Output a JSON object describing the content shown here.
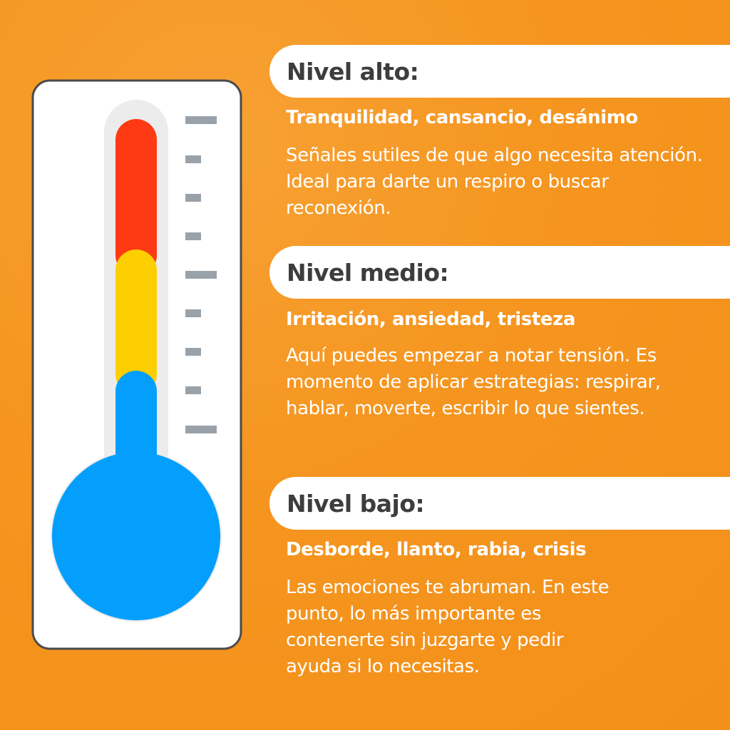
{
  "levels": [
    {
      "title": "Nivel alto:",
      "subtitle": "Tranquilidad, cansancio, desánimo",
      "description": "Señales sutiles de que algo necesita atención. Ideal para darte un respiro o buscar reconexión."
    },
    {
      "title": "Nivel medio:",
      "subtitle": "Irritación, ansiedad, tristeza",
      "description": "Aquí puedes empezar a notar tensión. Es momento de aplicar estrategias: respirar, hablar, moverte, escribir lo que sientes."
    },
    {
      "title": "Nivel bajo:",
      "subtitle": "Desborde, llanto, rabia, crisis",
      "description": "Las emociones te abruman. En este punto, lo más importante es contenerte sin juzgarte y pedir ayuda si lo necesitas."
    }
  ],
  "thermometer": {
    "segments": [
      {
        "level": "alto",
        "color": "#fe3a15"
      },
      {
        "level": "medio",
        "color": "#fecf00"
      },
      {
        "level": "bajo",
        "color": "#049ffd"
      }
    ],
    "frame_color": "#ffffff",
    "outline_color": "#4a4a4a",
    "tube_track_color": "#ececec",
    "tick_color": "#99a1a9"
  }
}
